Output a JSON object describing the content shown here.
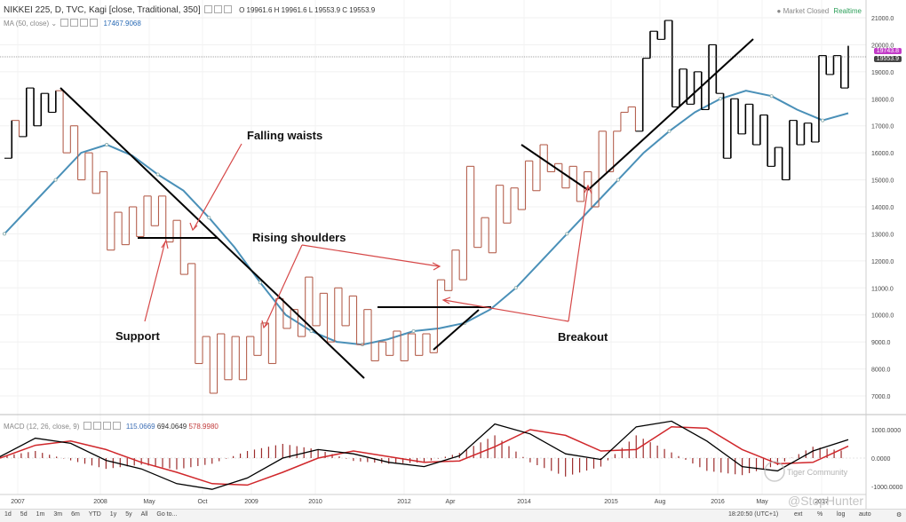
{
  "header": {
    "symbol": "NIKKEI 225, D, TVC, Kagi [close, Traditional, 350]",
    "ohlc": "O 19961.6  H 19961.6  L 19553.9  C 19553.9",
    "ma_label": "MA (50, close)",
    "ma_value": "17467.9068",
    "market_status": "Market Closed",
    "realtime": "Realtime"
  },
  "price_tags": {
    "last": "19743.8",
    "close": "19553.9"
  },
  "macd_header": {
    "label": "MACD (12, 26, close, 9)",
    "v1": "115.0669",
    "v2": "694.0649",
    "v3": "578.9980"
  },
  "annotations": {
    "falling_waists": "Falling waists",
    "rising_shoulders": "Rising shoulders",
    "support": "Support",
    "breakout": "Breakout"
  },
  "watermark": {
    "community": "Tiger Community",
    "handle": "@StopHunter"
  },
  "toolbar": {
    "buttons": [
      "1d",
      "5d",
      "1m",
      "3m",
      "6m",
      "YTD",
      "1y",
      "5y",
      "All",
      "Go to..."
    ],
    "time": "18:20:50 (UTC+1)",
    "ext": "ext",
    "pct": "%",
    "log": "log",
    "auto": "auto"
  },
  "colors": {
    "up": "#000000",
    "down": "#b5614f",
    "ma": "#4a90b8",
    "macd": "#000000",
    "signal": "#d0272b",
    "hist": "#9c2b2b"
  },
  "chart_data": [
    {
      "type": "line",
      "chart_kind": "kagi",
      "title": "NIKKEI 225, D, TVC, Kagi [close, Traditional, 350]",
      "x_ticks": [
        "2007",
        "2008",
        "May",
        "Oct",
        "2009",
        "2010",
        "2012",
        "Apr",
        "2014",
        "2015",
        "Aug",
        "2016",
        "May",
        "2017"
      ],
      "y_ticks": [
        "7000.0",
        "8000.0",
        "9000.0",
        "10000.0",
        "11000.0",
        "12000.0",
        "13000.0",
        "14000.0",
        "15000.0",
        "16000.0",
        "17000.0",
        "18000.0",
        "19000.0",
        "20000.0",
        "21000.0"
      ],
      "ylim": [
        6500,
        21400
      ],
      "series": [
        {
          "name": "NIKKEI 225",
          "values": [
            15800,
            17200,
            16600,
            18400,
            17000,
            18200,
            17500,
            18300,
            16000,
            17000,
            15000,
            16000,
            14500,
            15300,
            12400,
            13800,
            12600,
            14000,
            12900,
            14400,
            13300,
            14400,
            12700,
            13500,
            11500,
            11900,
            8200,
            9200,
            7100,
            9300,
            7600,
            9200,
            7600,
            9200,
            8500,
            9700,
            8200,
            10600,
            9500,
            10200,
            9200,
            11400,
            9600,
            10800,
            9000,
            11000,
            9600,
            10700,
            8900,
            10200,
            8300,
            9000,
            8500,
            9400,
            8300,
            9300,
            8500,
            9300,
            8600,
            11300,
            10900,
            12400,
            11300,
            15500,
            12500,
            13600,
            12300,
            14800,
            13400,
            14700,
            13900,
            15700,
            14600,
            16300,
            15300,
            15600,
            14700,
            15500,
            14200,
            15300,
            14000,
            16800,
            15300,
            16800,
            17500,
            17700,
            16800,
            19500,
            20500,
            20200,
            20900,
            17700,
            19100,
            17800,
            19000,
            17600,
            20000,
            18200,
            15800,
            18000,
            16700,
            17800,
            16300,
            17400,
            15500,
            16200,
            15000,
            17200,
            16300,
            17100,
            16400,
            19600,
            18900,
            19600,
            18400,
            19962
          ]
        },
        {
          "name": "MA (50, close)",
          "values": [
            13000,
            14000,
            15000,
            16000,
            16300,
            15900,
            15200,
            14600,
            13600,
            12500,
            11200,
            10000,
            9400,
            9000,
            8900,
            9100,
            9400,
            9500,
            9700,
            10200,
            11000,
            12000,
            13000,
            14000,
            15000,
            16000,
            16800,
            17500,
            18000,
            18300,
            18100,
            17600,
            17200,
            17468
          ]
        }
      ]
    },
    {
      "type": "line",
      "title": "MACD (12, 26, close, 9)",
      "y_ticks": [
        "1000.0000",
        "0.0000",
        "-1000.0000"
      ],
      "ylim": [
        -1600,
        1600
      ],
      "series": [
        {
          "name": "MACD",
          "values": [
            50,
            700,
            520,
            -80,
            -380,
            -900,
            -1100,
            -700,
            0,
            300,
            150,
            -150,
            -300,
            80,
            1200,
            850,
            150,
            -50,
            1100,
            1300,
            600,
            -300,
            -450,
            250,
            650
          ]
        },
        {
          "name": "Signal",
          "values": [
            0,
            450,
            600,
            300,
            -150,
            -500,
            -900,
            -950,
            -500,
            0,
            250,
            50,
            -150,
            -100,
            400,
            1000,
            800,
            250,
            300,
            1100,
            1050,
            300,
            -200,
            -150,
            420
          ]
        }
      ]
    }
  ]
}
